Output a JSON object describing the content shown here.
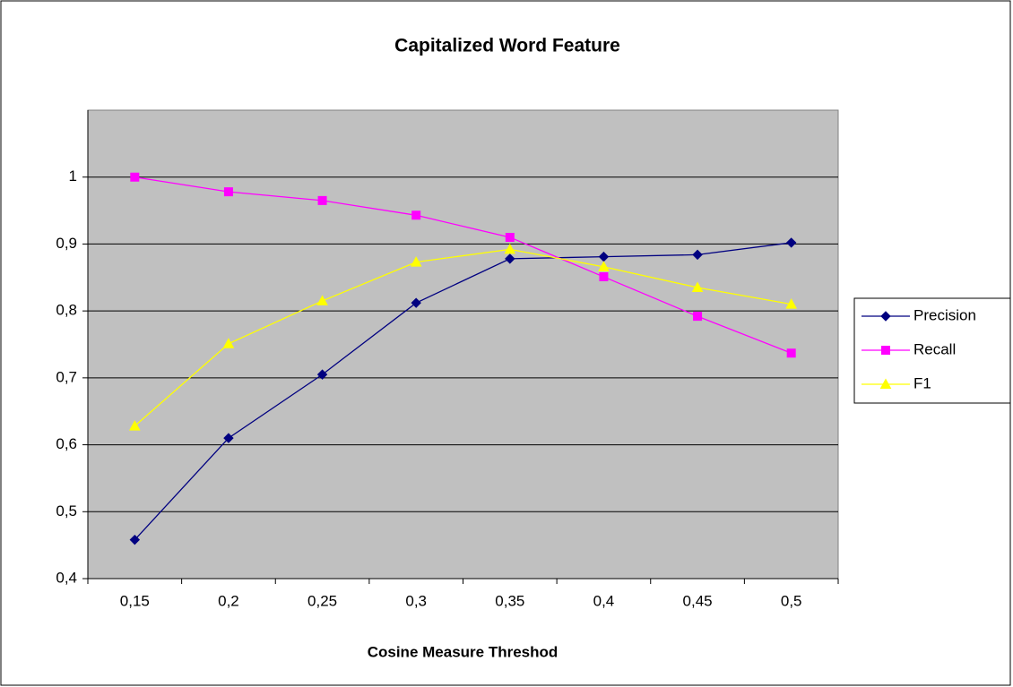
{
  "chart_data": {
    "type": "line",
    "title": "Capitalized Word Feature",
    "x_label": "Cosine Measure Threshod",
    "categories": [
      "0,15",
      "0,2",
      "0,25",
      "0,3",
      "0,35",
      "0,4",
      "0,45",
      "0,5"
    ],
    "series": [
      {
        "name": "Precision",
        "color": "#000080",
        "marker": "diamond",
        "values": [
          0.458,
          0.61,
          0.705,
          0.812,
          0.878,
          0.881,
          0.884,
          0.902
        ]
      },
      {
        "name": "Recall",
        "color": "#ff00ff",
        "marker": "square",
        "values": [
          1.0,
          0.978,
          0.965,
          0.943,
          0.91,
          0.851,
          0.792,
          0.737
        ]
      },
      {
        "name": "F1",
        "color": "#ffff00",
        "marker": "triangle",
        "values": [
          0.628,
          0.751,
          0.815,
          0.873,
          0.892,
          0.866,
          0.835,
          0.81
        ]
      }
    ],
    "ylim": [
      0.4,
      1.1
    ],
    "yticks": [
      {
        "value": 0.4,
        "label": "0,4"
      },
      {
        "value": 0.5,
        "label": "0,5"
      },
      {
        "value": 0.6,
        "label": "0,6"
      },
      {
        "value": 0.7,
        "label": "0,7"
      },
      {
        "value": 0.8,
        "label": "0,8"
      },
      {
        "value": 0.9,
        "label": "0,9"
      },
      1
    ],
    "grid": true,
    "legend": "right"
  }
}
